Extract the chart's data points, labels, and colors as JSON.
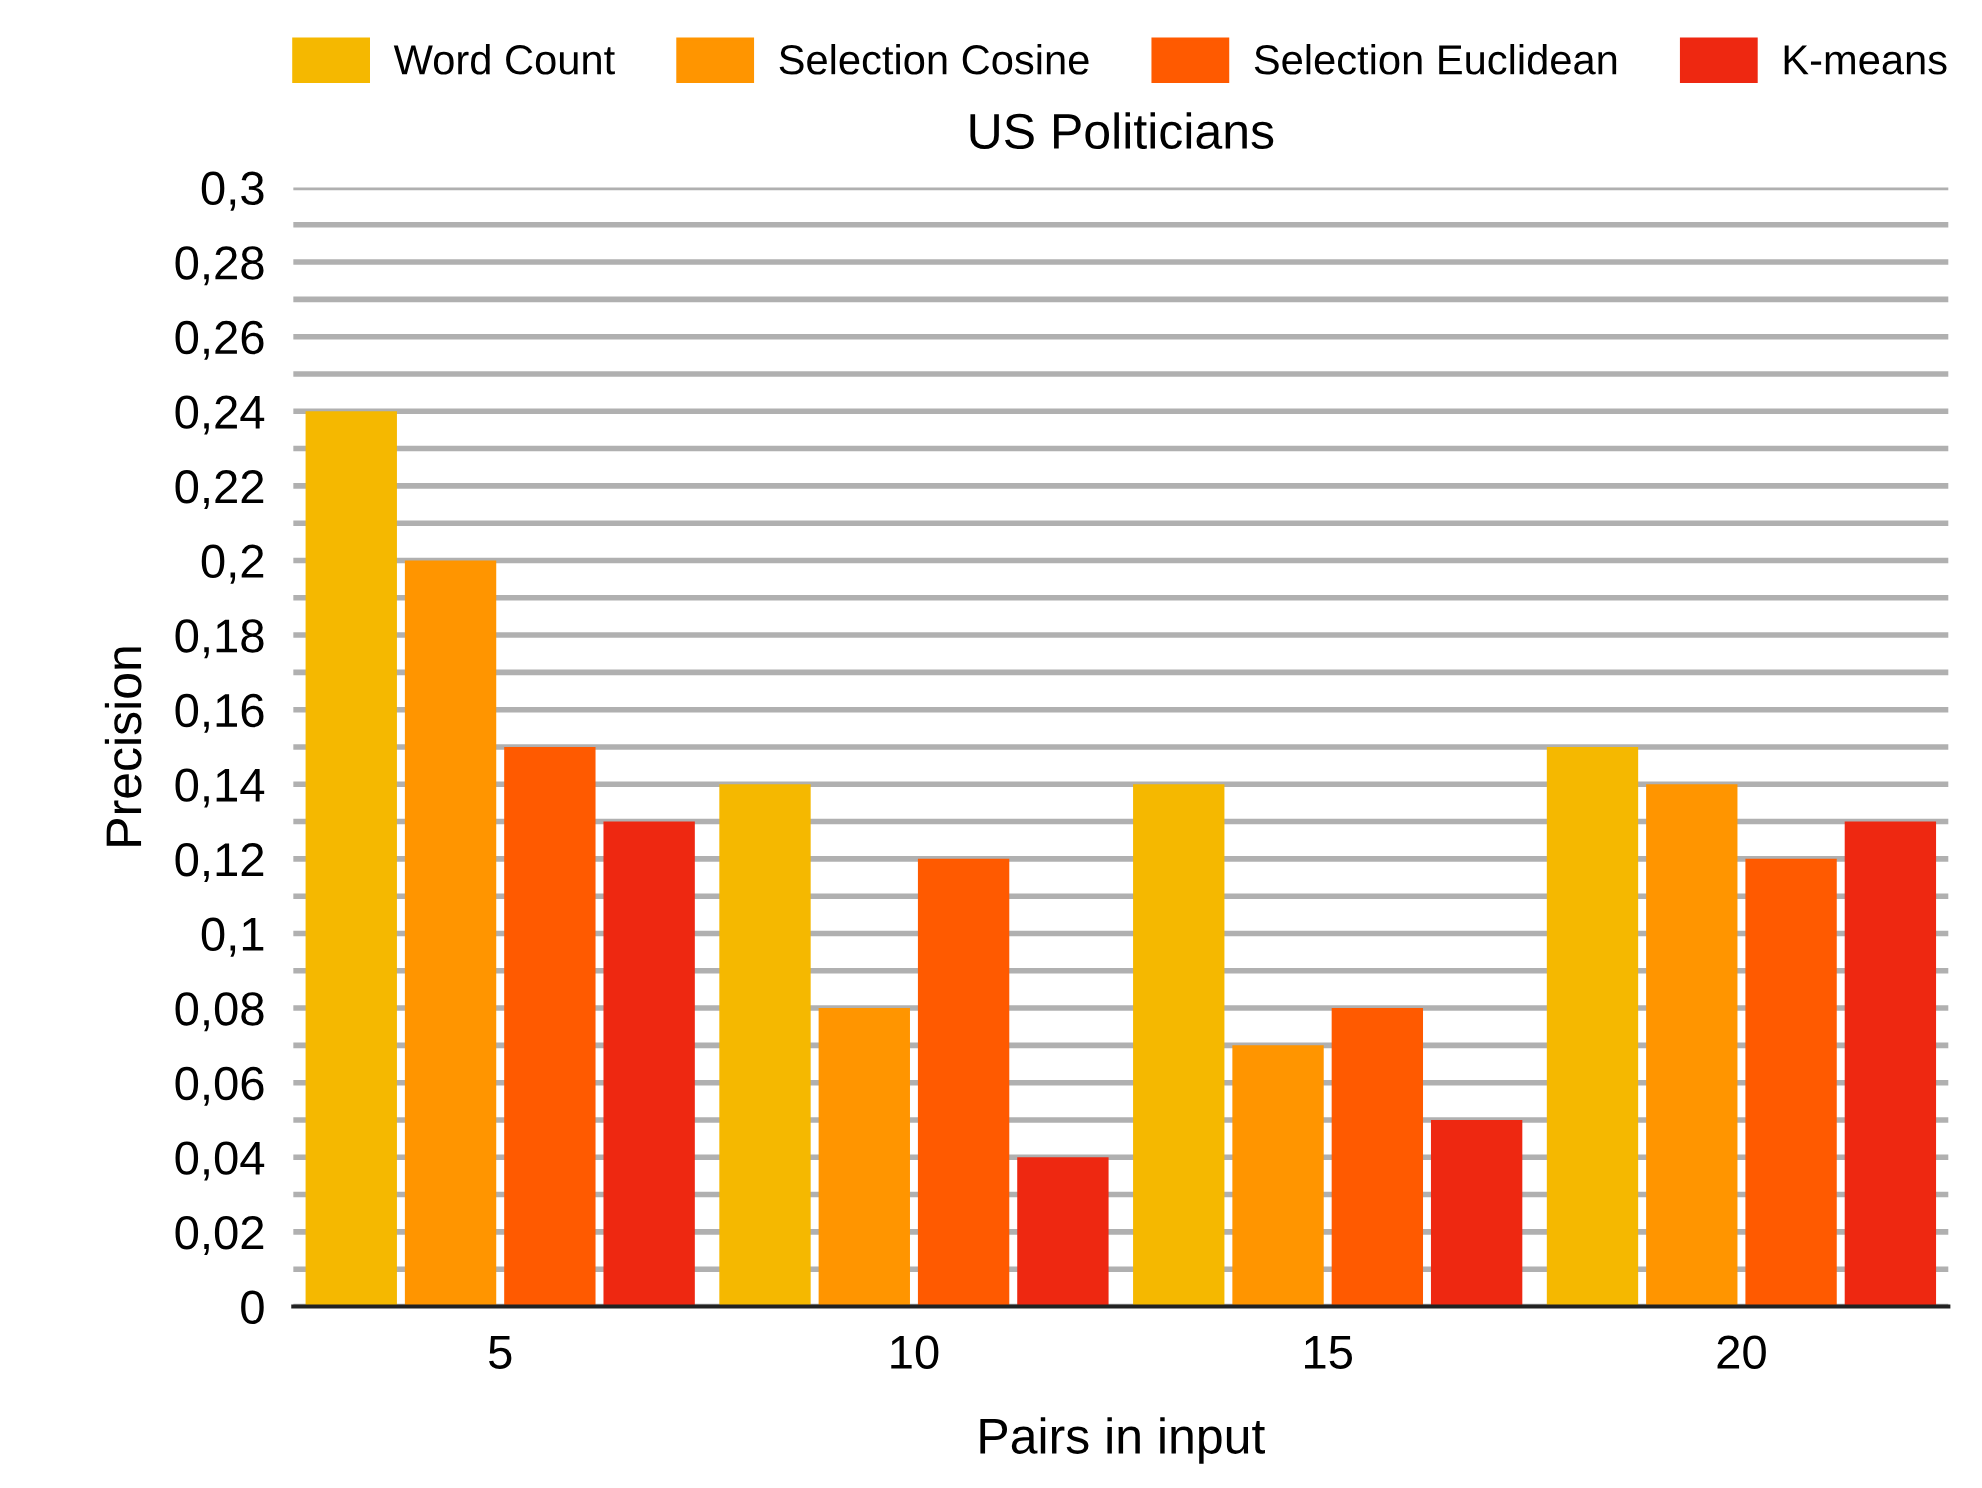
{
  "chart_data": {
    "type": "bar",
    "title": "US Politicians",
    "xlabel": "Pairs in input",
    "ylabel": "Precision",
    "categories": [
      "5",
      "10",
      "15",
      "20"
    ],
    "series": [
      {
        "name": "Word Count",
        "color": "#f5b800",
        "values": [
          0.24,
          0.14,
          0.14,
          0.15
        ]
      },
      {
        "name": "Selection Cosine",
        "color": "#ff9500",
        "values": [
          0.2,
          0.08,
          0.07,
          0.14
        ]
      },
      {
        "name": "Selection Euclidean",
        "color": "#ff5a00",
        "values": [
          0.15,
          0.12,
          0.08,
          0.12
        ]
      },
      {
        "name": "K-means",
        "color": "#ee2811",
        "values": [
          0.13,
          0.04,
          0.05,
          0.13
        ]
      }
    ],
    "ylim": [
      0,
      0.3
    ],
    "yticks": [
      0,
      {
        "value": 0.01,
        "label": null
      },
      {
        "value": 0.02,
        "label": "0,02"
      },
      {
        "value": 0.03,
        "label": null
      },
      {
        "value": 0.04,
        "label": "0,04"
      },
      {
        "value": 0.05,
        "label": null
      },
      {
        "value": 0.06,
        "label": "0,06"
      },
      {
        "value": 0.07,
        "label": null
      },
      {
        "value": 0.08,
        "label": "0,08"
      },
      {
        "value": 0.09,
        "label": null
      },
      {
        "value": 0.1,
        "label": "0,1"
      },
      {
        "value": 0.11,
        "label": null
      },
      {
        "value": 0.12,
        "label": "0,12"
      },
      {
        "value": 0.13,
        "label": null
      },
      {
        "value": 0.14,
        "label": "0,14"
      },
      {
        "value": 0.15,
        "label": null
      },
      {
        "value": 0.16,
        "label": "0,16"
      },
      {
        "value": 0.17,
        "label": null
      },
      {
        "value": 0.18,
        "label": "0,18"
      },
      {
        "value": 0.19,
        "label": null
      },
      {
        "value": 0.2,
        "label": "0,2"
      },
      {
        "value": 0.21,
        "label": null
      },
      {
        "value": 0.22,
        "label": "0,22"
      },
      {
        "value": 0.23,
        "label": null
      },
      {
        "value": 0.24,
        "label": "0,24"
      },
      {
        "value": 0.25,
        "label": null
      },
      {
        "value": 0.26,
        "label": "0,26"
      },
      {
        "value": 0.27,
        "label": null
      },
      {
        "value": 0.28,
        "label": "0,28"
      },
      {
        "value": 0.29,
        "label": null
      },
      {
        "value": 0.3,
        "label": "0,3"
      }
    ],
    "grid": "y",
    "legend": "top"
  }
}
